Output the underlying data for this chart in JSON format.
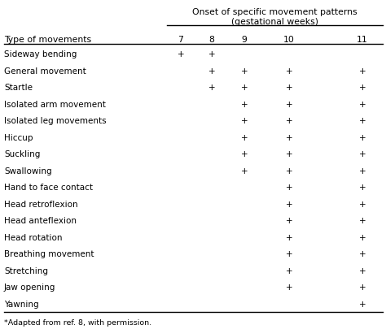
{
  "title_line1": "Onset of specific movement patterns",
  "title_line2": "(gestational weeks)",
  "col_header_left": "Type of movements",
  "weeks": [
    "7",
    "8",
    "9",
    "10",
    "11"
  ],
  "movements": [
    "Sideway bending",
    "General movement",
    "Startle",
    "Isolated arm movement",
    "Isolated leg movements",
    "Hiccup",
    "Suckling",
    "Swallowing",
    "Hand to face contact",
    "Head retroflexion",
    "Head anteflexion",
    "Head rotation",
    "Breathing movement",
    "Stretching",
    "Jaw opening",
    "Yawning"
  ],
  "data": [
    [
      1,
      1,
      0,
      0,
      0
    ],
    [
      0,
      1,
      1,
      1,
      1
    ],
    [
      0,
      1,
      1,
      1,
      1
    ],
    [
      0,
      0,
      1,
      1,
      1
    ],
    [
      0,
      0,
      1,
      1,
      1
    ],
    [
      0,
      0,
      1,
      1,
      1
    ],
    [
      0,
      0,
      1,
      1,
      1
    ],
    [
      0,
      0,
      1,
      1,
      1
    ],
    [
      0,
      0,
      0,
      1,
      1
    ],
    [
      0,
      0,
      0,
      1,
      1
    ],
    [
      0,
      0,
      0,
      1,
      1
    ],
    [
      0,
      0,
      0,
      1,
      1
    ],
    [
      0,
      0,
      0,
      1,
      1
    ],
    [
      0,
      0,
      0,
      1,
      1
    ],
    [
      0,
      0,
      0,
      1,
      1
    ],
    [
      0,
      0,
      0,
      0,
      1
    ]
  ],
  "footnote": "*Adapted from ref. 8, with permission.",
  "bg_color": "#ffffff",
  "text_color": "#000000",
  "line_color": "#000000",
  "title_fontsize": 7.8,
  "header_fontsize": 7.8,
  "row_fontsize": 7.5,
  "footnote_fontsize": 6.8
}
